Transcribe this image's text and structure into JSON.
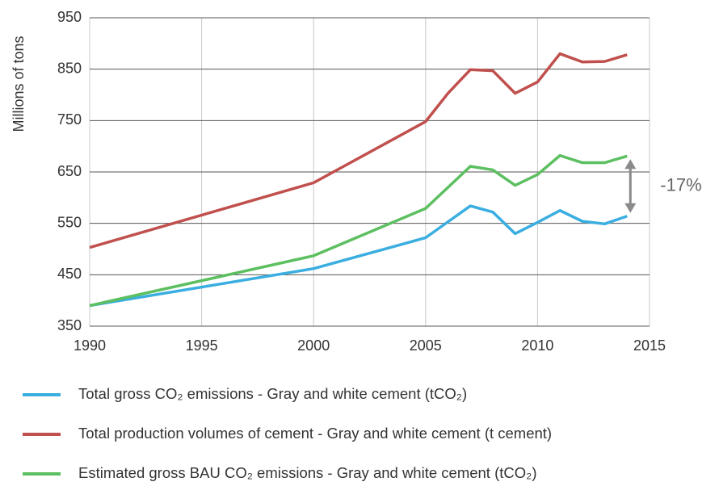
{
  "chart_data": {
    "type": "line",
    "y_label": "Millions of tons",
    "annotation": "-17%",
    "x": [
      1990,
      2000,
      2005,
      2006,
      2007,
      2008,
      2009,
      2010,
      2011,
      2012,
      2013,
      2014
    ],
    "xlim": [
      1990,
      2015
    ],
    "xticks": [
      1990,
      1995,
      2000,
      2005,
      2010,
      2015
    ],
    "ylim": [
      350,
      950
    ],
    "yticks": [
      350,
      450,
      550,
      650,
      750,
      850,
      950
    ],
    "grid": true,
    "series": [
      {
        "name": "Total gross CO₂ emissions - Gray and white cement (tCO₂)",
        "color": "#3aaee0",
        "values": [
          390,
          462,
          522,
          553,
          584,
          572,
          530,
          552,
          575,
          554,
          549,
          564
        ]
      },
      {
        "name": "Total production volumes of cement - Gray and white cement (t cement)",
        "color": "#c0504d",
        "values": [
          503,
          629,
          748,
          803,
          849,
          847,
          803,
          825,
          880,
          864,
          865,
          878
        ]
      },
      {
        "name": "Estimated gross BAU CO₂ emissions - Gray and white cement (tCO₂)",
        "color": "#5cbf60",
        "values": [
          390,
          487,
          579,
          620,
          661,
          654,
          624,
          645,
          682,
          668,
          668,
          681
        ]
      }
    ]
  }
}
